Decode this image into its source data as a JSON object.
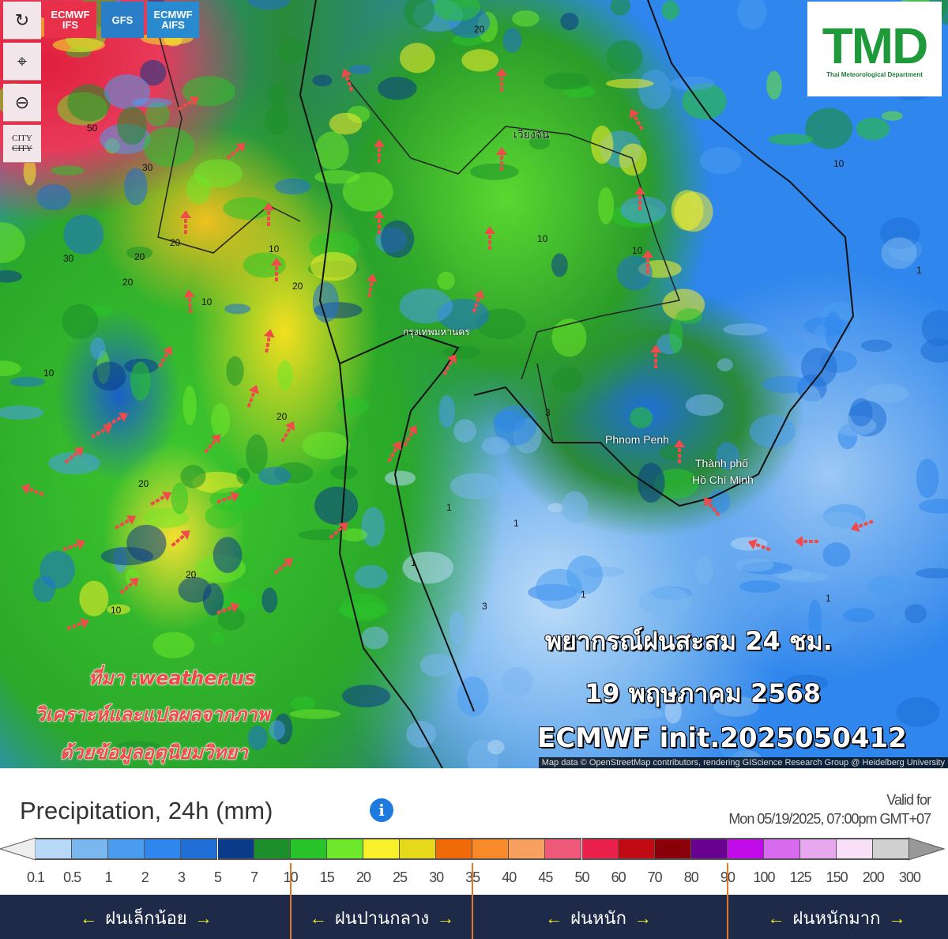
{
  "controls": {
    "items": [
      {
        "name": "refresh",
        "glyph": "↻"
      },
      {
        "name": "location",
        "glyph": "⌖"
      },
      {
        "name": "zoom-out",
        "glyph": "⊖"
      },
      {
        "name": "city-toggle",
        "label": "CITY"
      }
    ]
  },
  "models": [
    {
      "label": "ECMWF IFS",
      "color": "#e8304a",
      "active": true
    },
    {
      "label": "GFS",
      "color": "#2a7ec8"
    },
    {
      "label": "ECMWF AIFS",
      "color": "#2a8ad0"
    }
  ],
  "logo": {
    "text": "TMD",
    "subtitle": "Thai Meteorological Department"
  },
  "cities": [
    {
      "label": "เวียงจัน"
    },
    {
      "label": "กรุงเทพมหานคร"
    },
    {
      "label": "Phnom Penh"
    },
    {
      "label": "Thành phố"
    },
    {
      "label": "Hồ Chí Minh"
    }
  ],
  "contour_labels": [
    "50",
    "30",
    "30",
    "20",
    "20",
    "20",
    "10",
    "10",
    "20",
    "20",
    "20",
    "10",
    "20",
    "10",
    "10",
    "20",
    "10",
    "10",
    "1",
    "1",
    "1",
    "1",
    "1",
    "1",
    "3",
    "3"
  ],
  "overlay": {
    "line1": "พยากรณ์ฝนสะสม 24 ชม.",
    "line2": "19 พฤษภาคม 2568",
    "line3": "ECMWF init.2025050412"
  },
  "source": {
    "line1": "ที่มา :weather.us",
    "line2": "วิเคราะห์และแปลผลจากภาพ",
    "line3": "ด้วยข้อมูลอุตุนิยมวิทยา"
  },
  "attribution": "Map data © OpenStreetMap contributors, rendering GIScience Research Group @ Heidelberg University",
  "legend": {
    "title": "Precipitation, 24h (mm)",
    "info_icon": "i",
    "valid_label": "Valid for",
    "valid_time": "Mon 05/19/2025, 07:00pm GMT+07",
    "colors": [
      "#b8d8f8",
      "#7ab6f0",
      "#4a9cf0",
      "#2f86ec",
      "#1f6fd6",
      "#0a3a8a",
      "#1c8f2a",
      "#29c42a",
      "#6ee82a",
      "#f8f02a",
      "#e6d81a",
      "#f06a0a",
      "#f88a2a",
      "#f8a060",
      "#f05a7a",
      "#e8204a",
      "#c00a14",
      "#8a0008",
      "#6a0090",
      "#c00ae8",
      "#d86af0",
      "#e8a8f0",
      "#f8e0f8",
      "#d0d0d0"
    ],
    "ticks": [
      "0.1",
      "0.5",
      "1",
      "2",
      "3",
      "5",
      "7",
      "10",
      "15",
      "20",
      "25",
      "30",
      "35",
      "40",
      "45",
      "50",
      "60",
      "70",
      "80",
      "90",
      "100",
      "125",
      "150",
      "200",
      "300"
    ],
    "categories": [
      {
        "label": "ฝนเล็กน้อย"
      },
      {
        "label": "ฝนปานกลาง"
      },
      {
        "label": "ฝนหนัก"
      },
      {
        "label": "ฝนหนักมาก"
      }
    ]
  }
}
